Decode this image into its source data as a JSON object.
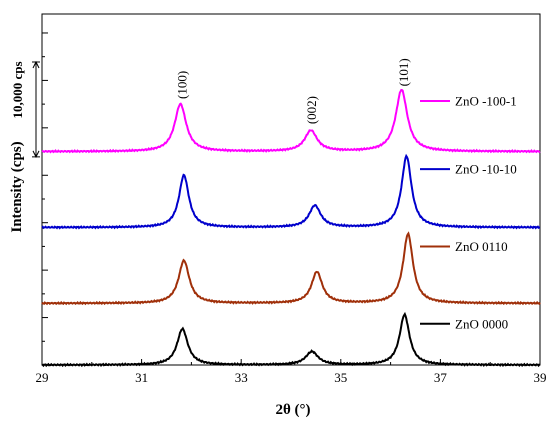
{
  "chart_data": {
    "type": "line",
    "xlabel": "2θ (°)",
    "ylabel": "Intensity (cps)",
    "xlim": [
      29,
      39
    ],
    "x_ticks": [
      "29",
      "31",
      "33",
      "35",
      "37",
      "39"
    ],
    "y_tick_labels_shown": false,
    "grid": false,
    "legend_placement": "right, beside each curve",
    "scale_bar": {
      "label": "10,000 cps",
      "value_cps": 10000
    },
    "peaks": [
      {
        "label": "(100)",
        "x": 31.8
      },
      {
        "label": "(002)",
        "x": 34.4
      },
      {
        "label": "(101)",
        "x": 36.25
      }
    ],
    "series": [
      {
        "name": "ZnO -100-1",
        "color": "#ff00ff",
        "baseline_cps": 22500,
        "peaks": [
          {
            "x": 31.78,
            "height_cps": 5000,
            "width": 0.14
          },
          {
            "x": 34.4,
            "height_cps": 2200,
            "width": 0.15
          },
          {
            "x": 36.22,
            "height_cps": 6500,
            "width": 0.14
          }
        ]
      },
      {
        "name": "ZnO -10-10",
        "color": "#0000cc",
        "baseline_cps": 14500,
        "peaks": [
          {
            "x": 31.85,
            "height_cps": 5500,
            "width": 0.12
          },
          {
            "x": 34.48,
            "height_cps": 2300,
            "width": 0.14
          },
          {
            "x": 36.32,
            "height_cps": 7500,
            "width": 0.12
          }
        ]
      },
      {
        "name": "ZnO 0110",
        "color": "#a0300a",
        "baseline_cps": 6500,
        "peaks": [
          {
            "x": 31.85,
            "height_cps": 4500,
            "width": 0.13
          },
          {
            "x": 34.52,
            "height_cps": 3300,
            "width": 0.13
          },
          {
            "x": 36.35,
            "height_cps": 7300,
            "width": 0.12
          }
        ]
      },
      {
        "name": "ZnO 0000",
        "color": "#000000",
        "baseline_cps": 0,
        "peaks": [
          {
            "x": 31.82,
            "height_cps": 3800,
            "width": 0.13
          },
          {
            "x": 34.42,
            "height_cps": 1400,
            "width": 0.15
          },
          {
            "x": 36.28,
            "height_cps": 5300,
            "width": 0.12
          }
        ]
      }
    ]
  }
}
